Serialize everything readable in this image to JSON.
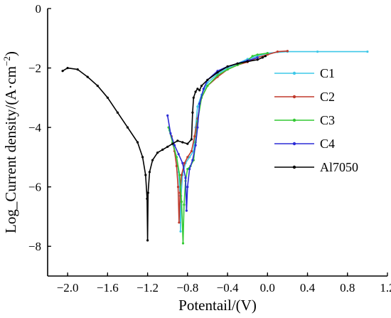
{
  "chart_data": {
    "type": "line",
    "title": "",
    "xlabel": "Potentail/(V)",
    "ylabel_prefix": "Log_Current density/(A·cm",
    "ylabel_sup": "−2",
    "ylabel_suffix": ")",
    "xlim": [
      -2.2,
      1.2
    ],
    "ylim": [
      -9,
      0
    ],
    "xticks": [
      -2.0,
      -1.6,
      -1.2,
      -0.8,
      -0.4,
      0.0,
      0.4,
      0.8,
      1.2
    ],
    "xtick_labels": [
      "−2.0",
      "−1.6",
      "−1.2",
      "−0.8",
      "−0.4",
      "0.0",
      "0.4",
      "0.8",
      "1.2"
    ],
    "yticks": [
      -8,
      -6,
      -4,
      -2,
      0
    ],
    "ytick_labels": [
      "−8",
      "−6",
      "−4",
      "−2",
      "0"
    ],
    "legend_position": "right",
    "series": [
      {
        "name": "C1",
        "color": "#3fc8e8",
        "points": [
          [
            -0.98,
            -4.1
          ],
          [
            -0.94,
            -4.6
          ],
          [
            -0.91,
            -5.0
          ],
          [
            -0.89,
            -5.5
          ],
          [
            -0.875,
            -6.3
          ],
          [
            -0.87,
            -7.5
          ],
          [
            -0.865,
            -6.3
          ],
          [
            -0.85,
            -5.6
          ],
          [
            -0.82,
            -5.2
          ],
          [
            -0.78,
            -5.0
          ],
          [
            -0.74,
            -4.8
          ],
          [
            -0.72,
            -4.0
          ],
          [
            -0.7,
            -3.3
          ],
          [
            -0.66,
            -2.9
          ],
          [
            -0.6,
            -2.5
          ],
          [
            -0.5,
            -2.2
          ],
          [
            -0.4,
            -2.0
          ],
          [
            -0.3,
            -1.85
          ],
          [
            -0.2,
            -1.7
          ],
          [
            -0.1,
            -1.6
          ],
          [
            0.0,
            -1.5
          ],
          [
            0.2,
            -1.45
          ],
          [
            0.5,
            -1.45
          ],
          [
            1.0,
            -1.45
          ]
        ]
      },
      {
        "name": "C2",
        "color": "#c0392b",
        "points": [
          [
            -0.96,
            -4.3
          ],
          [
            -0.93,
            -4.8
          ],
          [
            -0.91,
            -5.3
          ],
          [
            -0.895,
            -6.0
          ],
          [
            -0.885,
            -7.2
          ],
          [
            -0.875,
            -6.2
          ],
          [
            -0.86,
            -5.6
          ],
          [
            -0.83,
            -5.2
          ],
          [
            -0.8,
            -5.0
          ],
          [
            -0.76,
            -4.8
          ],
          [
            -0.73,
            -4.3
          ],
          [
            -0.7,
            -3.7
          ],
          [
            -0.66,
            -3.0
          ],
          [
            -0.6,
            -2.6
          ],
          [
            -0.5,
            -2.3
          ],
          [
            -0.4,
            -2.05
          ],
          [
            -0.3,
            -1.9
          ],
          [
            -0.2,
            -1.8
          ],
          [
            -0.1,
            -1.65
          ],
          [
            0.0,
            -1.55
          ],
          [
            0.1,
            -1.45
          ],
          [
            0.2,
            -1.43
          ]
        ]
      },
      {
        "name": "C3",
        "color": "#34c934",
        "points": [
          [
            -0.99,
            -4.0
          ],
          [
            -0.95,
            -4.5
          ],
          [
            -0.91,
            -5.0
          ],
          [
            -0.88,
            -5.6
          ],
          [
            -0.86,
            -6.5
          ],
          [
            -0.845,
            -7.9
          ],
          [
            -0.835,
            -6.6
          ],
          [
            -0.82,
            -5.8
          ],
          [
            -0.8,
            -5.4
          ],
          [
            -0.77,
            -5.3
          ],
          [
            -0.74,
            -5.1
          ],
          [
            -0.72,
            -4.5
          ],
          [
            -0.7,
            -3.8
          ],
          [
            -0.66,
            -3.0
          ],
          [
            -0.6,
            -2.6
          ],
          [
            -0.5,
            -2.25
          ],
          [
            -0.4,
            -2.05
          ],
          [
            -0.3,
            -1.9
          ],
          [
            -0.2,
            -1.75
          ],
          [
            -0.15,
            -1.6
          ],
          [
            -0.1,
            -1.55
          ],
          [
            0.0,
            -1.5
          ]
        ]
      },
      {
        "name": "C4",
        "color": "#2b2bd6",
        "points": [
          [
            -1.0,
            -3.6
          ],
          [
            -0.97,
            -4.2
          ],
          [
            -0.93,
            -4.6
          ],
          [
            -0.89,
            -4.9
          ],
          [
            -0.85,
            -5.2
          ],
          [
            -0.82,
            -5.7
          ],
          [
            -0.81,
            -6.8
          ],
          [
            -0.8,
            -6.0
          ],
          [
            -0.78,
            -5.4
          ],
          [
            -0.75,
            -5.1
          ],
          [
            -0.72,
            -4.6
          ],
          [
            -0.7,
            -4.0
          ],
          [
            -0.68,
            -3.2
          ],
          [
            -0.64,
            -2.7
          ],
          [
            -0.6,
            -2.4
          ],
          [
            -0.5,
            -2.1
          ],
          [
            -0.4,
            -1.95
          ],
          [
            -0.3,
            -1.85
          ],
          [
            -0.2,
            -1.75
          ],
          [
            -0.1,
            -1.65
          ]
        ]
      },
      {
        "name": "Al7050",
        "color": "#000000",
        "points": [
          [
            -2.05,
            -2.1
          ],
          [
            -2.0,
            -2.0
          ],
          [
            -1.9,
            -2.05
          ],
          [
            -1.8,
            -2.3
          ],
          [
            -1.7,
            -2.6
          ],
          [
            -1.6,
            -3.0
          ],
          [
            -1.5,
            -3.5
          ],
          [
            -1.4,
            -4.0
          ],
          [
            -1.3,
            -4.5
          ],
          [
            -1.25,
            -5.0
          ],
          [
            -1.22,
            -5.6
          ],
          [
            -1.205,
            -6.4
          ],
          [
            -1.2,
            -7.8
          ],
          [
            -1.195,
            -6.2
          ],
          [
            -1.18,
            -5.5
          ],
          [
            -1.15,
            -5.1
          ],
          [
            -1.1,
            -4.85
          ],
          [
            -1.05,
            -4.75
          ],
          [
            -1.0,
            -4.65
          ],
          [
            -0.95,
            -4.55
          ],
          [
            -0.9,
            -4.45
          ],
          [
            -0.85,
            -4.5
          ],
          [
            -0.8,
            -4.55
          ],
          [
            -0.76,
            -4.4
          ],
          [
            -0.75,
            -3.5
          ],
          [
            -0.74,
            -3.0
          ],
          [
            -0.72,
            -2.8
          ],
          [
            -0.7,
            -2.7
          ],
          [
            -0.68,
            -2.75
          ],
          [
            -0.66,
            -2.6
          ],
          [
            -0.6,
            -2.4
          ],
          [
            -0.5,
            -2.15
          ],
          [
            -0.4,
            -1.95
          ],
          [
            -0.3,
            -1.85
          ],
          [
            -0.2,
            -1.78
          ],
          [
            -0.1,
            -1.72
          ],
          [
            -0.05,
            -1.65
          ],
          [
            -0.02,
            -1.6
          ]
        ]
      }
    ]
  }
}
